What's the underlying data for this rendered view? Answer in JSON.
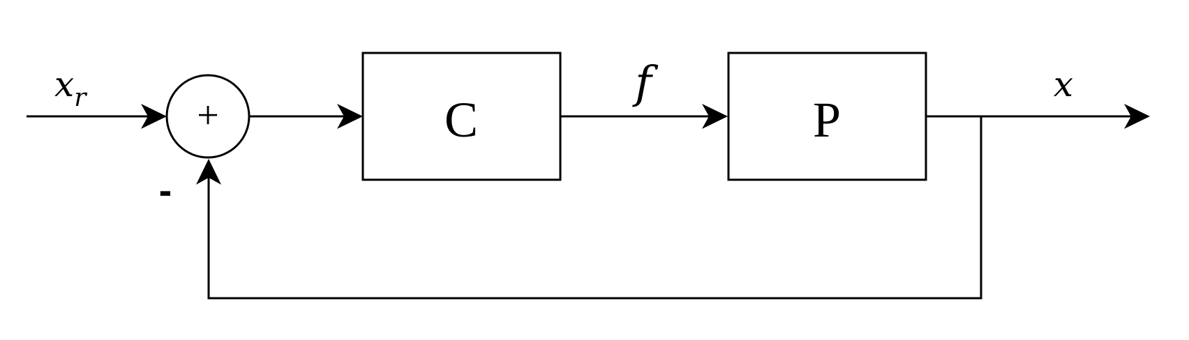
{
  "diagram": {
    "input_label": {
      "base": "x",
      "sub": "r"
    },
    "summing_junction_symbol": "+",
    "feedback_sign": "-",
    "controller_label": "C",
    "signal_label": "f",
    "plant_label": "P",
    "output_label": "x"
  }
}
